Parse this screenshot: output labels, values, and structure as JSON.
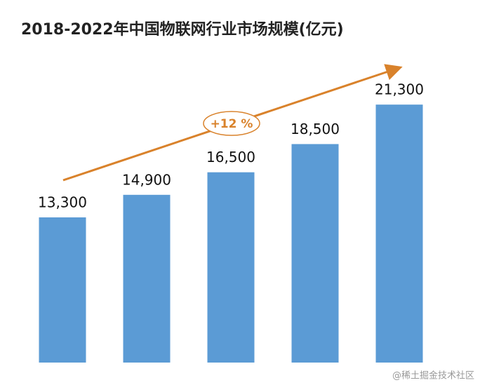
{
  "chart_data": {
    "type": "bar",
    "title": "2018-2022年中国物联网行业市场规模(亿元)",
    "categories": [
      null,
      null,
      null,
      null,
      null
    ],
    "values": [
      13300,
      14900,
      16500,
      18500,
      21300
    ],
    "value_labels": [
      "13,300",
      "14,900",
      "16,500",
      "18,500",
      "21,300"
    ],
    "color": "#5b9bd5",
    "ylim": [
      3000,
      23000
    ],
    "annotation": "+12 %",
    "arrow_color": "#d9822b",
    "watermark": "@稀土掘金技术社区"
  }
}
